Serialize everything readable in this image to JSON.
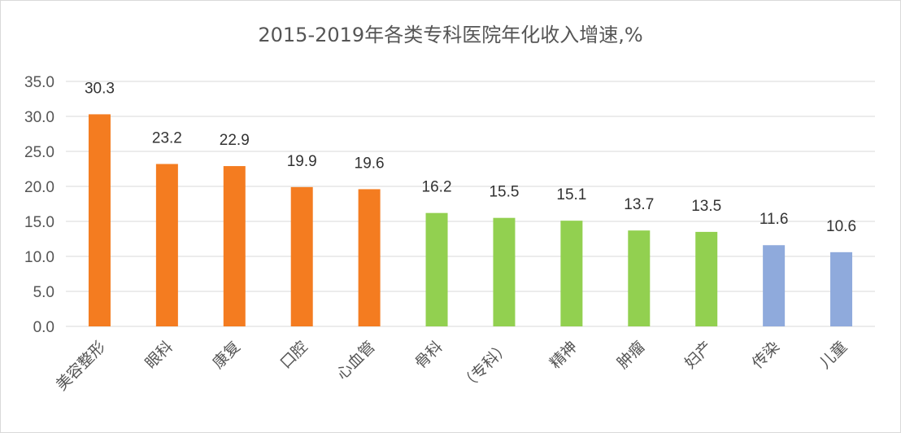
{
  "chart_data": {
    "type": "bar",
    "title": "2015-2019年各类专科医院年化收入增速,%",
    "xlabel": "",
    "ylabel": "",
    "ylim": [
      0,
      35
    ],
    "yticks": [
      "0.0",
      "5.0",
      "10.0",
      "15.0",
      "20.0",
      "25.0",
      "30.0",
      "35.0"
    ],
    "grid": true,
    "legend": "none",
    "categories": [
      "美容整形",
      "眼科",
      "康复",
      "口腔",
      "心血管",
      "骨科",
      "（专科）",
      "精神",
      "肿瘤",
      "妇产",
      "传染",
      "儿童"
    ],
    "values": [
      30.3,
      23.2,
      22.9,
      19.9,
      19.6,
      16.2,
      15.5,
      15.1,
      13.7,
      13.5,
      11.6,
      10.6
    ],
    "data_labels": [
      "30.3",
      "23.2",
      "22.9",
      "19.9",
      "19.6",
      "16.2",
      "15.5",
      "15.1",
      "13.7",
      "13.5",
      "11.6",
      "10.6"
    ],
    "bar_colors": [
      "#f47c20",
      "#f47c20",
      "#f47c20",
      "#f47c20",
      "#f47c20",
      "#92d050",
      "#92d050",
      "#92d050",
      "#92d050",
      "#92d050",
      "#8faadc",
      "#8faadc"
    ],
    "grid_color": "#d9d9d9"
  }
}
